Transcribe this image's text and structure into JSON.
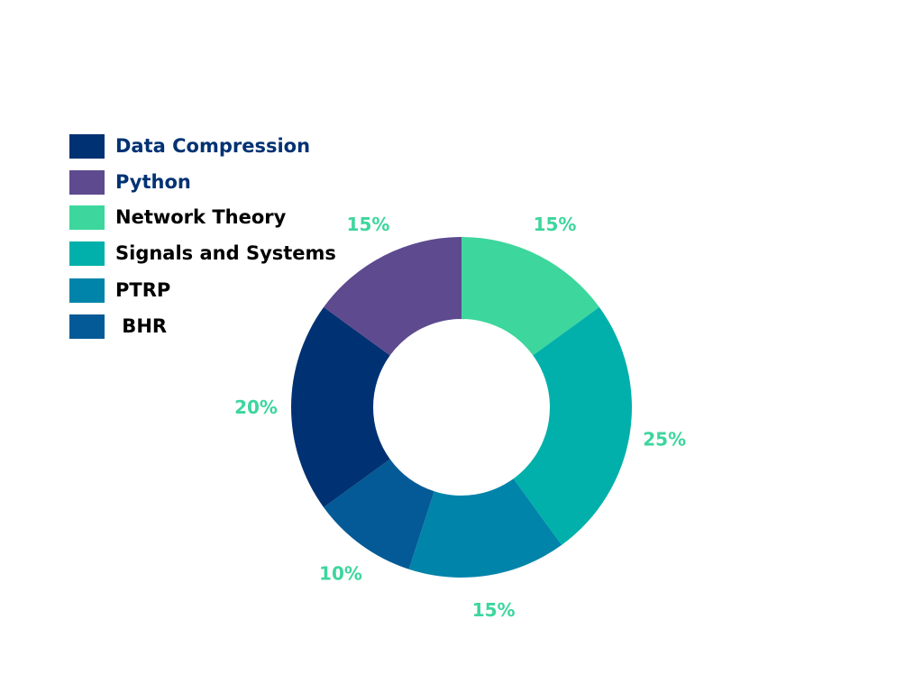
{
  "chart_data": {
    "type": "pie",
    "variant": "donut",
    "title": "",
    "legend_position": "top-left",
    "slices": [
      {
        "name": "Network Theory",
        "value": 15,
        "label": "15%",
        "color": "#3dd69d"
      },
      {
        "name": "Signals and Systems",
        "value": 25,
        "label": "25%",
        "color": "#01b0aa"
      },
      {
        "name": "PTRP",
        "value": 15,
        "label": "15%",
        "color": "#0084aa"
      },
      {
        "name": "BHR",
        "value": 10,
        "label": "10%",
        "color": "#035a96"
      },
      {
        "name": "Data Compression",
        "value": 20,
        "label": "20%",
        "color": "#003273"
      },
      {
        "name": "Python",
        "value": 15,
        "label": "15%",
        "color": "#5e4a8f"
      }
    ],
    "label_color": "#3dd69d"
  },
  "legend": {
    "items": [
      {
        "label": "Data Compression",
        "color": "#003273",
        "text_color": "#003273"
      },
      {
        "label": "Python",
        "color": "#5e4a8f",
        "text_color": "#003273"
      },
      {
        "label": "Network Theory",
        "color": "#3dd69d",
        "text_color": "#000000"
      },
      {
        "label": "Signals and Systems",
        "color": "#01b0aa",
        "text_color": "#000000"
      },
      {
        "label": "PTRP",
        "color": "#0084aa",
        "text_color": "#000000"
      },
      {
        "label": " BHR",
        "color": "#035a96",
        "text_color": "#000000"
      }
    ]
  }
}
